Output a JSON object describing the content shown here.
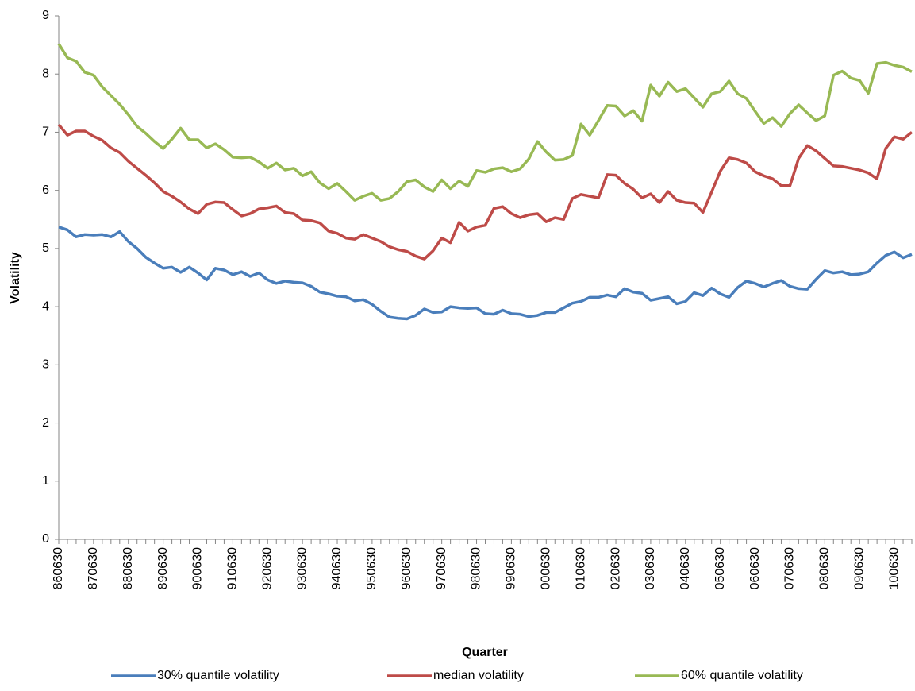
{
  "chart_data": {
    "type": "line",
    "x_label": "Quarter",
    "y_label": "Volatility",
    "categories": [
      "860630",
      null,
      null,
      null,
      "870630",
      null,
      null,
      null,
      "880630",
      null,
      null,
      null,
      "890630",
      null,
      null,
      null,
      "900630",
      null,
      null,
      null,
      "910630",
      null,
      null,
      null,
      "920630",
      null,
      null,
      null,
      "930630",
      null,
      null,
      null,
      "940630",
      null,
      null,
      null,
      "950630",
      null,
      null,
      null,
      "960630",
      null,
      null,
      null,
      "970630",
      null,
      null,
      null,
      "980630",
      null,
      null,
      null,
      "990630",
      null,
      null,
      null,
      "000630",
      null,
      null,
      null,
      "010630",
      null,
      null,
      null,
      "020630",
      null,
      null,
      null,
      "030630",
      null,
      null,
      null,
      "040630",
      null,
      null,
      null,
      "050630",
      null,
      null,
      null,
      "060630",
      null,
      null,
      null,
      "070630",
      null,
      null,
      null,
      "080630",
      null,
      null,
      null,
      "090630",
      null,
      null,
      null,
      "100630",
      null,
      null
    ],
    "series": [
      {
        "name": "30% quantile volatility",
        "color": "#4a7ebb",
        "values": [
          5.37,
          5.32,
          5.2,
          5.24,
          5.23,
          5.24,
          5.2,
          5.29,
          5.12,
          5.0,
          4.85,
          4.75,
          4.66,
          4.68,
          4.59,
          4.68,
          4.58,
          4.46,
          4.66,
          4.63,
          4.55,
          4.6,
          4.52,
          4.58,
          4.46,
          4.4,
          4.44,
          4.42,
          4.41,
          4.35,
          4.25,
          4.22,
          4.18,
          4.17,
          4.1,
          4.12,
          4.04,
          3.92,
          3.82,
          3.8,
          3.79,
          3.85,
          3.96,
          3.9,
          3.91,
          4.0,
          3.98,
          3.97,
          3.98,
          3.88,
          3.87,
          3.94,
          3.88,
          3.87,
          3.83,
          3.85,
          3.9,
          3.9,
          3.98,
          4.06,
          4.09,
          4.16,
          4.16,
          4.2,
          4.17,
          4.31,
          4.25,
          4.23,
          4.11,
          4.14,
          4.17,
          4.05,
          4.09,
          4.24,
          4.19,
          4.32,
          4.22,
          4.16,
          4.33,
          4.44,
          4.4,
          4.34,
          4.4,
          4.45,
          4.35,
          4.31,
          4.3,
          4.47,
          4.62,
          4.58,
          4.6,
          4.55,
          4.56,
          4.6,
          4.75,
          4.88,
          4.94,
          4.84,
          4.9
        ]
      },
      {
        "name": "median volatility",
        "color": "#be4b48",
        "values": [
          7.13,
          6.95,
          7.02,
          7.02,
          6.93,
          6.86,
          6.73,
          6.65,
          6.5,
          6.38,
          6.26,
          6.13,
          5.98,
          5.9,
          5.8,
          5.68,
          5.6,
          5.76,
          5.8,
          5.79,
          5.67,
          5.56,
          5.6,
          5.68,
          5.7,
          5.73,
          5.62,
          5.6,
          5.49,
          5.48,
          5.44,
          5.3,
          5.26,
          5.18,
          5.16,
          5.24,
          5.18,
          5.12,
          5.03,
          4.98,
          4.95,
          4.87,
          4.82,
          4.96,
          5.18,
          5.1,
          5.45,
          5.3,
          5.37,
          5.4,
          5.69,
          5.72,
          5.6,
          5.53,
          5.58,
          5.6,
          5.46,
          5.53,
          5.5,
          5.86,
          5.93,
          5.9,
          5.87,
          6.27,
          6.26,
          6.12,
          6.02,
          5.87,
          5.94,
          5.79,
          5.98,
          5.83,
          5.79,
          5.78,
          5.62,
          5.97,
          6.33,
          6.56,
          6.53,
          6.47,
          6.32,
          6.25,
          6.2,
          6.08,
          6.08,
          6.55,
          6.77,
          6.68,
          6.55,
          6.42,
          6.41,
          6.38,
          6.35,
          6.3,
          6.2,
          6.72,
          6.92,
          6.88,
          7.0
        ]
      },
      {
        "name": "60% quantile volatility",
        "color": "#98b954",
        "values": [
          8.52,
          8.28,
          8.22,
          8.03,
          7.98,
          7.78,
          7.63,
          7.48,
          7.3,
          7.1,
          6.98,
          6.84,
          6.72,
          6.88,
          7.07,
          6.87,
          6.87,
          6.73,
          6.8,
          6.7,
          6.57,
          6.56,
          6.57,
          6.49,
          6.38,
          6.47,
          6.35,
          6.38,
          6.25,
          6.32,
          6.13,
          6.03,
          6.12,
          5.98,
          5.83,
          5.9,
          5.95,
          5.83,
          5.86,
          5.98,
          6.15,
          6.18,
          6.06,
          5.98,
          6.18,
          6.03,
          6.16,
          6.07,
          6.34,
          6.31,
          6.37,
          6.39,
          6.32,
          6.37,
          6.54,
          6.84,
          6.66,
          6.52,
          6.53,
          6.6,
          7.14,
          6.95,
          7.2,
          7.46,
          7.45,
          7.28,
          7.37,
          7.19,
          7.81,
          7.62,
          7.86,
          7.7,
          7.75,
          7.59,
          7.43,
          7.66,
          7.7,
          7.88,
          7.66,
          7.58,
          7.36,
          7.15,
          7.25,
          7.1,
          7.32,
          7.47,
          7.33,
          7.2,
          7.28,
          7.98,
          8.05,
          7.93,
          7.89,
          7.67,
          8.18,
          8.2,
          8.15,
          8.12,
          8.04
        ]
      }
    ],
    "ylim": [
      0,
      9
    ],
    "yticks": [
      0,
      1,
      2,
      3,
      4,
      5,
      6,
      7,
      8,
      9
    ],
    "grid": false,
    "legend": "bottom"
  }
}
